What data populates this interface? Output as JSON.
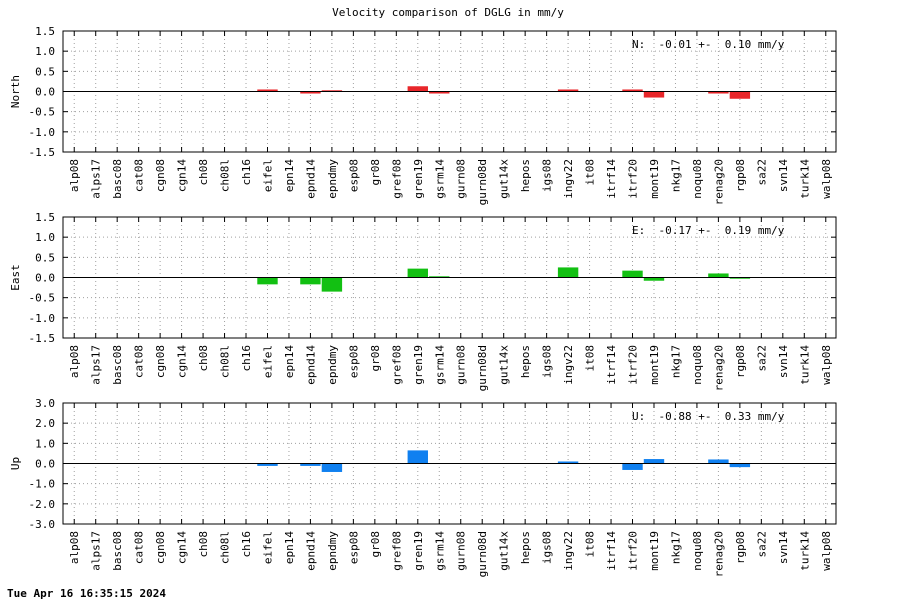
{
  "title": "Velocity comparison of DGLG in mm/y",
  "timestamp": "Tue Apr 16 16:35:15 2024",
  "categories": [
    "alp08",
    "alps17",
    "basc08",
    "cat08",
    "cgn08",
    "cgn14",
    "ch08",
    "ch08l",
    "ch16",
    "eifel",
    "epn14",
    "epnd14",
    "epndmy",
    "esp08",
    "gr08",
    "gref08",
    "gren19",
    "gsrm14",
    "gurn08",
    "gurn08d",
    "gut14x",
    "hepos",
    "igs08",
    "ingv22",
    "it08",
    "itrf14",
    "itrf20",
    "mont19",
    "nkg17",
    "noqu08",
    "renag20",
    "rgp08",
    "sa22",
    "svn14",
    "turk14",
    "walp08"
  ],
  "chart_data": [
    {
      "type": "bar",
      "ylabel": "North",
      "ylim": [
        -1.5,
        1.5
      ],
      "yticks": [
        "1.5",
        "1.0",
        "0.5",
        "0.0",
        "-0.5",
        "-1.0",
        "-1.5"
      ],
      "color": "#e8262a",
      "annotation": "N:  -0.01 +-  0.10 mm/y",
      "grid": true,
      "values": [
        0,
        0,
        0,
        0,
        0,
        0,
        0,
        0,
        0,
        0.05,
        0,
        -0.05,
        0.03,
        0,
        0,
        0,
        0.13,
        -0.05,
        0,
        0,
        0,
        0,
        0,
        0.05,
        0,
        0,
        0.05,
        -0.15,
        0,
        0,
        -0.05,
        -0.18,
        0,
        0,
        0,
        0
      ]
    },
    {
      "type": "bar",
      "ylabel": "East",
      "ylim": [
        -1.5,
        1.5
      ],
      "yticks": [
        "1.5",
        "1.0",
        "0.5",
        "0.0",
        "-0.5",
        "-1.0",
        "-1.5"
      ],
      "color": "#12c012",
      "annotation": "E:  -0.17 +-  0.19 mm/y",
      "grid": true,
      "values": [
        0,
        0,
        0,
        0,
        0,
        0,
        0,
        0,
        0,
        -0.17,
        0,
        -0.17,
        -0.35,
        0,
        0,
        0,
        0.22,
        0.03,
        0,
        0,
        0,
        0,
        0,
        0.25,
        0,
        0,
        0.17,
        -0.08,
        0,
        0,
        0.1,
        -0.03,
        0,
        0,
        0,
        0
      ]
    },
    {
      "type": "bar",
      "ylabel": "Up",
      "ylim": [
        -3.0,
        3.0
      ],
      "yticks": [
        "3.0",
        "2.0",
        "1.0",
        "0.0",
        "-1.0",
        "-2.0",
        "-3.0"
      ],
      "color": "#1080f0",
      "annotation": "U:  -0.88 +-  0.33 mm/y",
      "grid": true,
      "values": [
        0,
        0,
        0,
        0,
        0,
        0,
        0,
        0,
        0,
        -0.12,
        0,
        -0.12,
        -0.42,
        0,
        0,
        0,
        0.65,
        0,
        0,
        0,
        0,
        0,
        0,
        0.1,
        0,
        0,
        -0.32,
        0.22,
        0,
        0,
        0.2,
        -0.18,
        0,
        0,
        0,
        0
      ]
    }
  ]
}
